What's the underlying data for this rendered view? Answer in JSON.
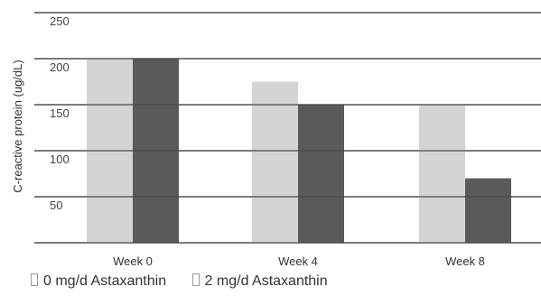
{
  "chart_data": {
    "type": "bar",
    "title": "",
    "xlabel": "",
    "ylabel": "C-reactive protein (ug/dL)",
    "categories": [
      "Week 0",
      "Week 4",
      "Week 8"
    ],
    "series": [
      {
        "name": "0 mg/d Astaxanthin",
        "values": [
          200,
          175,
          150
        ],
        "color": "#d4d4d4"
      },
      {
        "name": "2 mg/d Astaxanthin",
        "values": [
          200,
          150,
          70
        ],
        "color": "#5a5a5a"
      }
    ],
    "ylim": [
      0,
      250
    ],
    "yticks": [
      50,
      100,
      150,
      200,
      250
    ],
    "grid": true,
    "legend_position": "bottom-left",
    "gridline_color": "#4a4a4a"
  }
}
